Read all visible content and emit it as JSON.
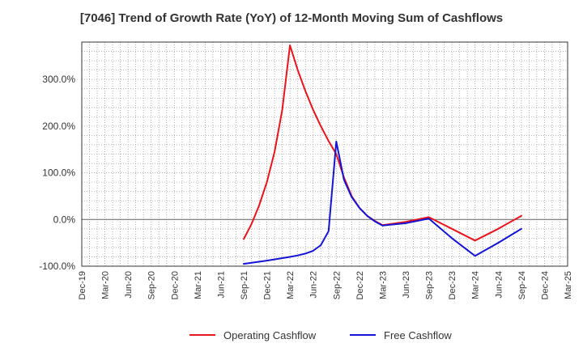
{
  "title": "[7046]  Trend of Growth Rate (YoY) of 12-Month Moving Sum of Cashflows",
  "chart_data": {
    "type": "line",
    "title": "[7046]  Trend of Growth Rate (YoY) of 12-Month Moving Sum of Cashflows",
    "xlabel": "",
    "ylabel": "",
    "x_tick_labels": [
      "Dec-19",
      "Mar-20",
      "Jun-20",
      "Sep-20",
      "Dec-20",
      "Mar-21",
      "Jun-21",
      "Sep-21",
      "Dec-21",
      "Mar-22",
      "Jun-22",
      "Sep-22",
      "Dec-22",
      "Mar-23",
      "Jun-23",
      "Sep-23",
      "Dec-23",
      "Mar-24",
      "Jun-24",
      "Sep-24",
      "Dec-24",
      "Mar-25"
    ],
    "y_ticks": [
      -100,
      0,
      100,
      200,
      300
    ],
    "y_tick_labels": [
      "-100.0%",
      "0.0%",
      "100.0%",
      "200.0%",
      "300.0%"
    ],
    "ylim": [
      -100,
      380
    ],
    "grid": true,
    "legend_position": "bottom",
    "series": [
      {
        "name": "Operating Cashflow",
        "color": "#e8141e",
        "x": [
          "2021-09",
          "2021-10",
          "2021-11",
          "2021-12",
          "2022-01",
          "2022-02",
          "2022-03",
          "2022-04",
          "2022-05",
          "2022-06",
          "2022-07",
          "2022-08",
          "2022-09",
          "2022-10",
          "2022-11",
          "2022-12",
          "2023-01",
          "2023-02",
          "2023-03",
          "2023-06",
          "2023-09",
          "2023-12",
          "2024-03",
          "2024-06",
          "2024-09"
        ],
        "values": [
          -42,
          -10,
          30,
          80,
          145,
          235,
          373,
          320,
          275,
          235,
          200,
          168,
          140,
          90,
          50,
          25,
          8,
          -3,
          -12,
          -5,
          5,
          -20,
          -45,
          -20,
          8
        ]
      },
      {
        "name": "Free Cashflow",
        "color": "#1414d2",
        "x": [
          "2021-09",
          "2021-12",
          "2022-03",
          "2022-04",
          "2022-05",
          "2022-06",
          "2022-07",
          "2022-08",
          "2022-09",
          "2022-10",
          "2022-11",
          "2022-12",
          "2023-01",
          "2023-02",
          "2023-03",
          "2023-06",
          "2023-09",
          "2023-12",
          "2024-03",
          "2024-06",
          "2024-09"
        ],
        "values": [
          -95,
          -88,
          -80,
          -77,
          -73,
          -67,
          -55,
          -25,
          167,
          85,
          48,
          25,
          8,
          -4,
          -13,
          -8,
          2,
          -40,
          -78,
          -50,
          -20
        ]
      }
    ]
  },
  "legend": {
    "items": [
      {
        "label": "Operating Cashflow",
        "color": "#e8141e"
      },
      {
        "label": "Free Cashflow",
        "color": "#1414d2"
      }
    ]
  }
}
